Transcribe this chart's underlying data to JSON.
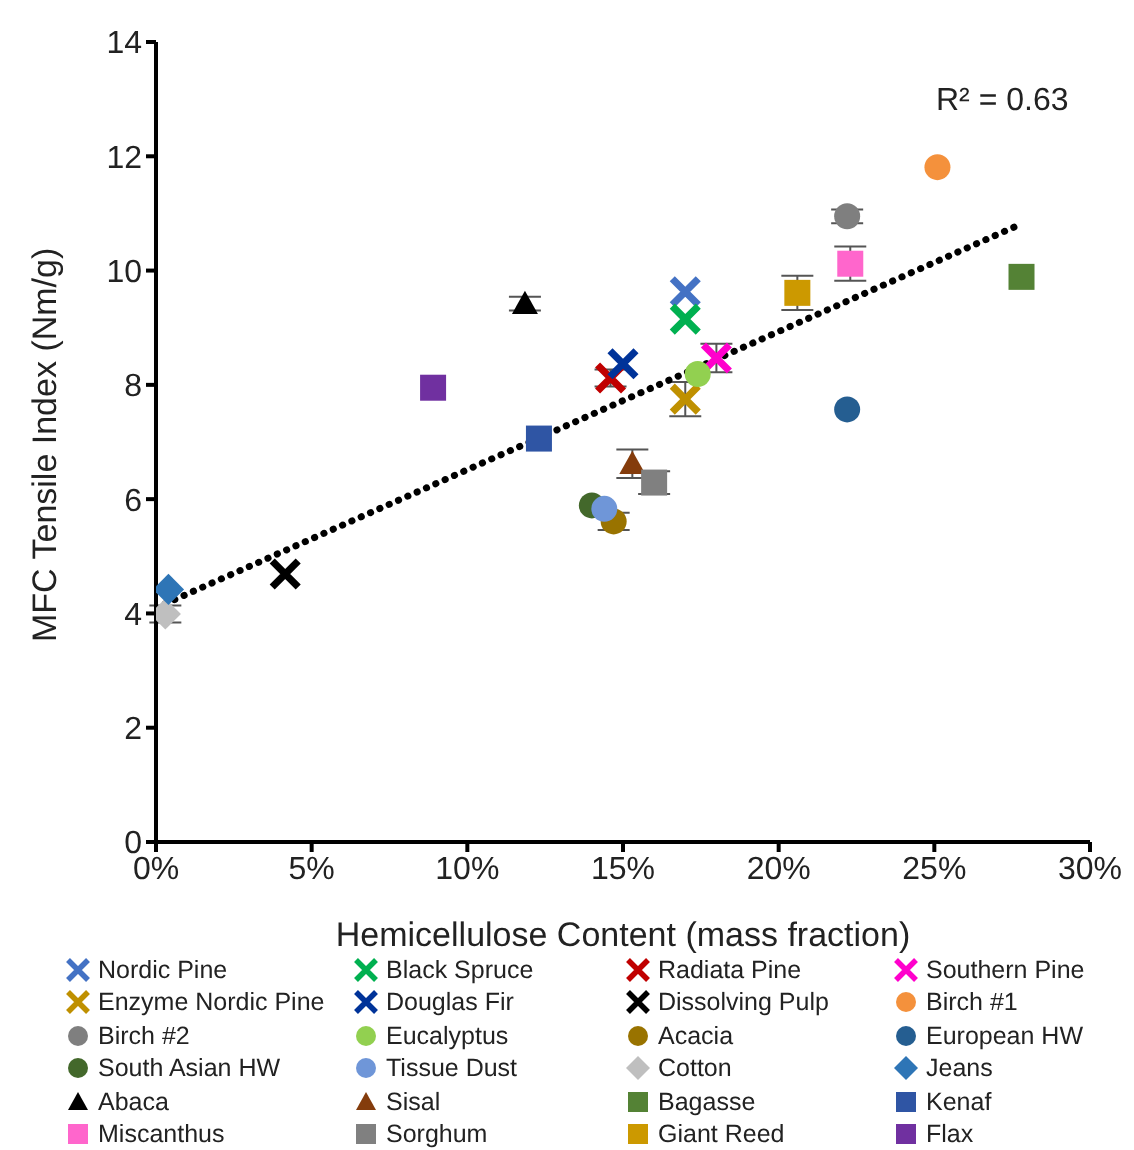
{
  "chart_data": {
    "type": "scatter",
    "xlabel": "Hemicellulose Content (mass fraction)",
    "ylabel": "MFC Tensile Index (Nm/g)",
    "annotations": [
      "R² = 0.63"
    ],
    "xlim": [
      0,
      0.3
    ],
    "xticks": [
      {
        "value": 0,
        "label": "0%"
      },
      {
        "value": 0.05,
        "label": "5%"
      },
      {
        "value": 0.1,
        "label": "10%"
      },
      {
        "value": 0.15,
        "label": "15%"
      },
      {
        "value": 0.2,
        "label": "20%"
      },
      {
        "value": 0.25,
        "label": "25%"
      },
      {
        "value": 0.3,
        "label": "30%"
      }
    ],
    "ylim": [
      0,
      14
    ],
    "yticks": [
      0,
      2,
      4,
      6,
      8,
      10,
      12,
      14
    ],
    "legend": "bottom",
    "series": [
      {
        "name": "Nordic Pine",
        "color": "#4472c4",
        "marker": "cross",
        "x": [
          0.17
        ],
        "values": [
          9.63
        ]
      },
      {
        "name": "Black Spruce",
        "color": "#00b050",
        "marker": "cross",
        "x": [
          0.17
        ],
        "values": [
          9.15
        ]
      },
      {
        "name": "Radiata Pine",
        "color": "#c00000",
        "marker": "cross",
        "x": [
          0.146
        ],
        "values": [
          8.12
        ],
        "errors": [
          0.15
        ]
      },
      {
        "name": "Southern Pine",
        "color": "#ff00cc",
        "marker": "cross",
        "x": [
          0.18
        ],
        "values": [
          8.47
        ],
        "errors": [
          0.25
        ]
      },
      {
        "name": "Enzyme Nordic Pine",
        "color": "#bf9000",
        "marker": "cross",
        "x": [
          0.17
        ],
        "values": [
          7.75
        ],
        "errors": [
          0.3
        ]
      },
      {
        "name": "Douglas Fir",
        "color": "#003399",
        "marker": "cross",
        "x": [
          0.15
        ],
        "values": [
          8.37
        ]
      },
      {
        "name": "Dissolving Pulp",
        "color": "#000000",
        "marker": "cross",
        "x": [
          0.0415
        ],
        "values": [
          4.69
        ]
      },
      {
        "name": "Birch #1",
        "color": "#f4913c",
        "marker": "circle",
        "x": [
          0.251
        ],
        "values": [
          11.81
        ]
      },
      {
        "name": "Birch #2",
        "color": "#7f7f7f",
        "marker": "circle",
        "x": [
          0.222
        ],
        "values": [
          10.95
        ],
        "errors": [
          0.12
        ]
      },
      {
        "name": "Eucalyptus",
        "color": "#92d050",
        "marker": "circle",
        "x": [
          0.174
        ],
        "values": [
          8.19
        ]
      },
      {
        "name": "Acacia",
        "color": "#997300",
        "marker": "circle",
        "x": [
          0.147
        ],
        "values": [
          5.61
        ],
        "errors": [
          0.15
        ]
      },
      {
        "name": "European HW",
        "color": "#255e91",
        "marker": "circle",
        "x": [
          0.222
        ],
        "values": [
          7.57
        ]
      },
      {
        "name": "South Asian HW",
        "color": "#43682b",
        "marker": "circle",
        "x": [
          0.14
        ],
        "values": [
          5.89
        ]
      },
      {
        "name": "Tissue Dust",
        "color": "#6f96d8",
        "marker": "circle",
        "x": [
          0.144
        ],
        "values": [
          5.83
        ]
      },
      {
        "name": "Cotton",
        "color": "#bfbfbf",
        "marker": "diamond",
        "x": [
          0.003
        ],
        "values": [
          3.99
        ],
        "errors": [
          0.15
        ]
      },
      {
        "name": "Jeans",
        "color": "#2e75b6",
        "marker": "diamond",
        "x": [
          0.004
        ],
        "values": [
          4.42
        ]
      },
      {
        "name": "Abaca",
        "color": "#000000",
        "marker": "triangle",
        "x": [
          0.1185
        ],
        "values": [
          9.42
        ],
        "errors": [
          0.12
        ]
      },
      {
        "name": "Sisal",
        "color": "#843c0c",
        "marker": "triangle",
        "x": [
          0.153
        ],
        "values": [
          6.62
        ],
        "errors": [
          0.25
        ]
      },
      {
        "name": "Bagasse",
        "color": "#548235",
        "marker": "square",
        "x": [
          0.278
        ],
        "values": [
          9.89
        ]
      },
      {
        "name": "Kenaf",
        "color": "#2f55a4",
        "marker": "square",
        "x": [
          0.123
        ],
        "values": [
          7.06
        ]
      },
      {
        "name": "Miscanthus",
        "color": "#ff66cc",
        "marker": "square",
        "x": [
          0.223
        ],
        "values": [
          10.12
        ],
        "errors": [
          0.3
        ]
      },
      {
        "name": "Sorghum",
        "color": "#808080",
        "marker": "square",
        "x": [
          0.16
        ],
        "values": [
          6.29
        ],
        "errors": [
          0.2
        ]
      },
      {
        "name": "Giant Reed",
        "color": "#cc9900",
        "marker": "square",
        "x": [
          0.206
        ],
        "values": [
          9.61
        ],
        "errors": [
          0.3
        ]
      },
      {
        "name": "Flax",
        "color": "#7030a0",
        "marker": "square",
        "x": [
          0.089
        ],
        "values": [
          7.95
        ]
      },
      {
        "type": "line",
        "color": "#000000",
        "marker": "none",
        "line_style": "dotted",
        "x": [
          0.003,
          0.276
        ],
        "values": [
          4.17,
          10.77
        ]
      }
    ]
  }
}
